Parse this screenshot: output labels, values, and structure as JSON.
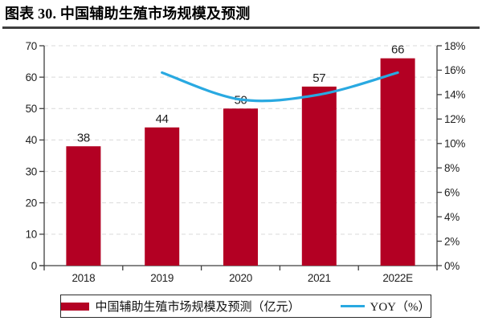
{
  "title": "图表 30. 中国辅助生殖市场规模及预测",
  "colors": {
    "bar": "#B30023",
    "line": "#29A9E1",
    "grid": "#D9D9D9",
    "axis": "#3F3F3F",
    "text": "#1F1F1F"
  },
  "chart_data": {
    "type": "bar",
    "categories": [
      "2018",
      "2019",
      "2020",
      "2021",
      "2022E"
    ],
    "series": [
      {
        "name": "中国辅助生殖市场规模及预测（亿元）",
        "type": "bar",
        "axis": "left",
        "values": [
          38,
          44,
          50,
          57,
          66
        ],
        "data_labels": [
          "38",
          "44",
          "50",
          "57",
          "66"
        ]
      },
      {
        "name": "YOY（%）",
        "type": "line",
        "axis": "right",
        "values": [
          null,
          15.8,
          13.6,
          14.0,
          15.8
        ]
      }
    ],
    "left_axis": {
      "min": 0,
      "max": 70,
      "step": 10,
      "ticks": [
        "0",
        "10",
        "20",
        "30",
        "40",
        "50",
        "60",
        "70"
      ]
    },
    "right_axis": {
      "min": 0,
      "max": 18,
      "step": 2,
      "ticks": [
        "0%",
        "2%",
        "4%",
        "6%",
        "8%",
        "10%",
        "12%",
        "14%",
        "16%",
        "18%"
      ]
    },
    "grid": true,
    "legend_position": "bottom"
  },
  "legend": {
    "items": [
      {
        "label": "中国辅助生殖市场规模及预测（亿元）",
        "swatch": "bar"
      },
      {
        "label": "YOY（%）",
        "swatch": "line"
      }
    ]
  }
}
